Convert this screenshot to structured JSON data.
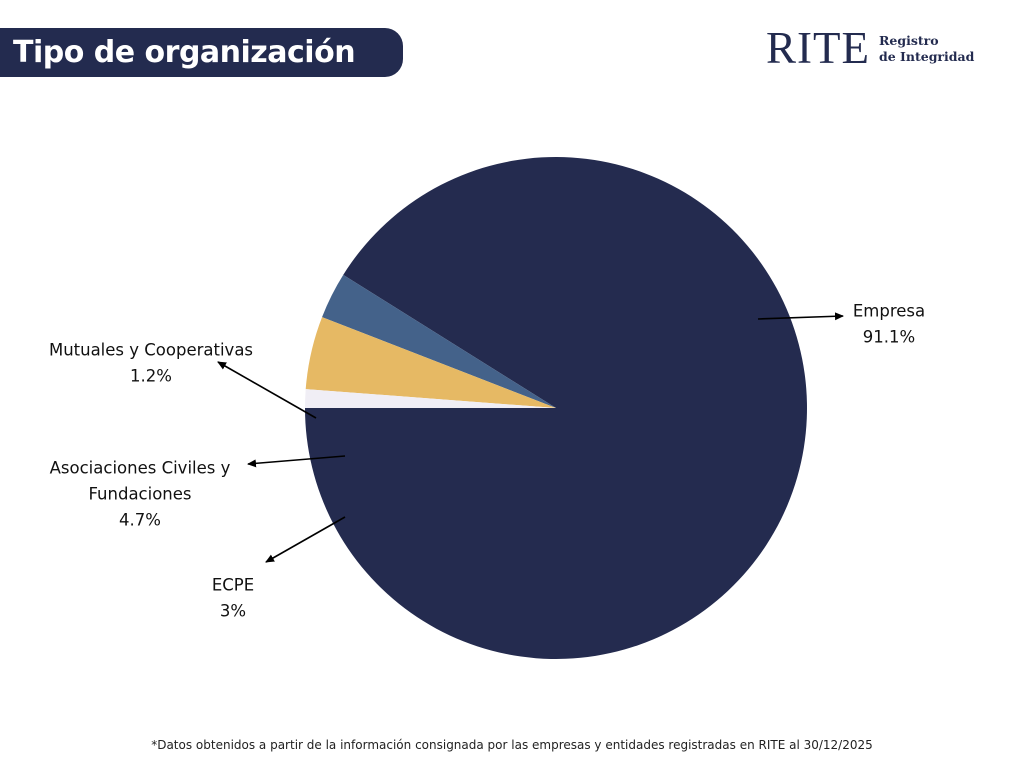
{
  "header": {
    "title": "Tipo de organización"
  },
  "logo": {
    "main": "RITE",
    "sub_line1": "Registro",
    "sub_line2": "de Integridad"
  },
  "footnote": "*Datos obtenidos a partir de la información consignada por las empresas y entidades registradas en RITE al 30/12/2025",
  "chart_data": {
    "type": "pie",
    "title": "Tipo de organización",
    "slices": [
      {
        "label": [
          "Empresa"
        ],
        "value": 91.1,
        "value_label": "91.1%",
        "color": "#242b4f"
      },
      {
        "label": [
          "ECPE"
        ],
        "value": 3,
        "value_label": "3%",
        "color": "#44628a"
      },
      {
        "label": [
          "Asociaciones Civiles y",
          "Fundaciones"
        ],
        "value": 4.7,
        "value_label": "4.7%",
        "color": "#e6b964"
      },
      {
        "label": [
          "Mutuales y Cooperativas"
        ],
        "value": 1.2,
        "value_label": "1.2%",
        "color": "#f0eef5"
      }
    ],
    "start_angle_deg": 180,
    "direction": "counterclockwise",
    "legend": "none"
  }
}
